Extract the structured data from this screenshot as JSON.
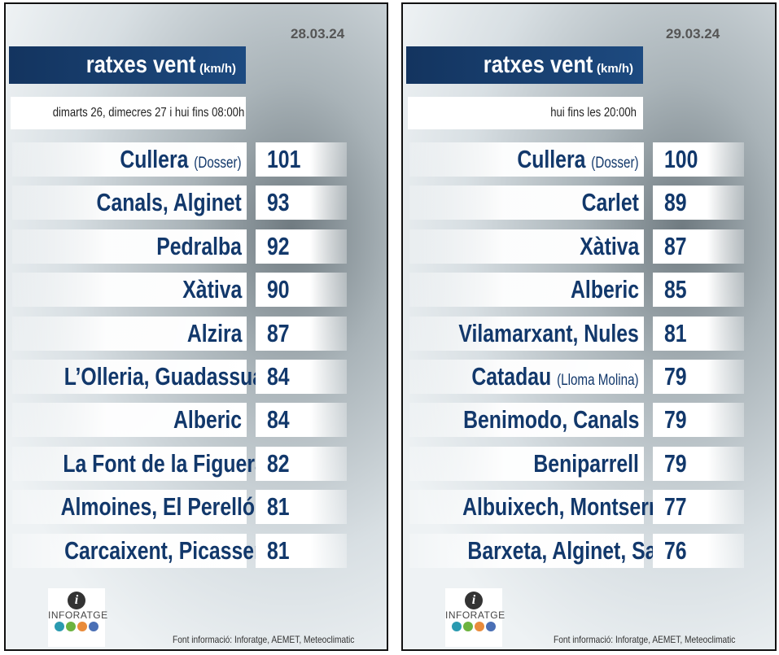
{
  "panels": [
    {
      "date": "28.03.24",
      "title": "ratxes vent",
      "unit": "(km/h)",
      "subtitle": "dimarts 26, dimecres 27 i hui fins 08:00h",
      "rows": [
        {
          "name": "Cullera",
          "note": "(Dosser)",
          "value": 101
        },
        {
          "name": "Canals, Alginet",
          "value": 93
        },
        {
          "name": "Pedralba",
          "value": 92
        },
        {
          "name": "Xàtiva",
          "value": 90
        },
        {
          "name": "Alzira",
          "value": 87
        },
        {
          "name": "L’Olleria, Guadassuar",
          "value": 84
        },
        {
          "name": "Alberic",
          "value": 84
        },
        {
          "name": "La Font de la Figuera",
          "value": 82
        },
        {
          "name": "Almoines, El Perelló",
          "value": 81
        },
        {
          "name": "Carcaixent, Picassent",
          "value": 81
        }
      ],
      "logo": "INFORATGE",
      "source": "Font informació: Inforatge, AEMET, Meteoclimatic"
    },
    {
      "date": "29.03.24",
      "title": "ratxes vent",
      "unit": "(km/h)",
      "subtitle": "hui fins les 20:00h",
      "rows": [
        {
          "name": "Cullera",
          "note": "(Dosser)",
          "value": 100
        },
        {
          "name": "Carlet",
          "value": 89
        },
        {
          "name": "Xàtiva",
          "value": 87
        },
        {
          "name": "Alberic",
          "value": 85
        },
        {
          "name": "Vilamarxant, Nules",
          "value": 81
        },
        {
          "name": "Catadau",
          "note": "(Lloma Molina)",
          "value": 79
        },
        {
          "name": "Benimodo, Canals",
          "value": 79
        },
        {
          "name": "Beniparrell",
          "value": 79
        },
        {
          "name": "Albuixech, Montserrat",
          "value": 77
        },
        {
          "name": "Barxeta, Alginet, Sagunt",
          "value": 76
        }
      ],
      "logo": "INFORATGE",
      "source": "Font informació: Inforatge, AEMET, Meteoclimatic"
    }
  ]
}
